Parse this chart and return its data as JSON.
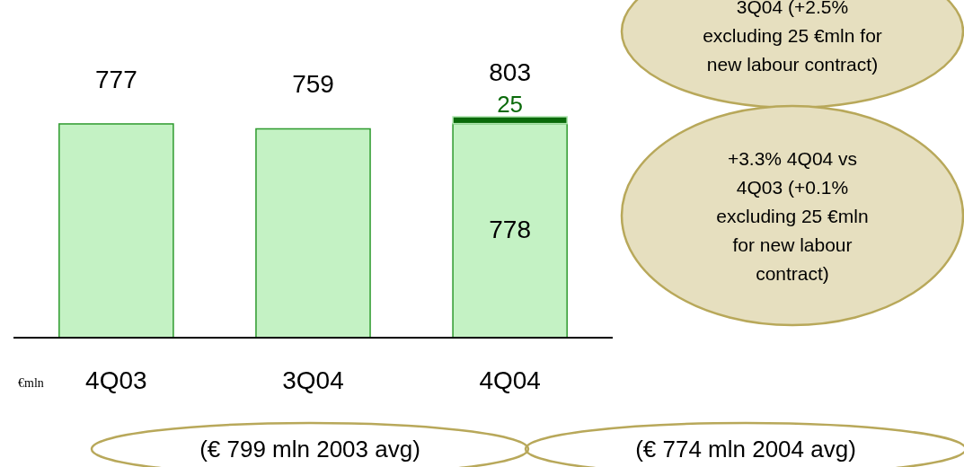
{
  "chart_data": {
    "type": "bar",
    "stacked": true,
    "categories": [
      "4Q03",
      "3Q04",
      "4Q04"
    ],
    "series": [
      {
        "color": "#c4f2c4",
        "values": [
          777,
          759,
          778
        ],
        "value_labels": [
          "777",
          "759",
          "778"
        ]
      },
      {
        "color": "#0a6a0a",
        "values": [
          null,
          null,
          25
        ],
        "value_labels": [
          null,
          null,
          "25"
        ]
      }
    ],
    "totals": [
      null,
      null,
      "803"
    ],
    "annotations": [
      "3Q04 (+2.5%\nexcluding 25 €mln for\nnew labour contract)",
      "+3.3% 4Q04 vs\n4Q03 (+0.1%\nexcluding 25 €mln\nfor new labour\ncontract)",
      "(€ 799 mln 2003 avg)",
      "(€ 774 mln 2004 avg)",
      "€mln"
    ]
  }
}
